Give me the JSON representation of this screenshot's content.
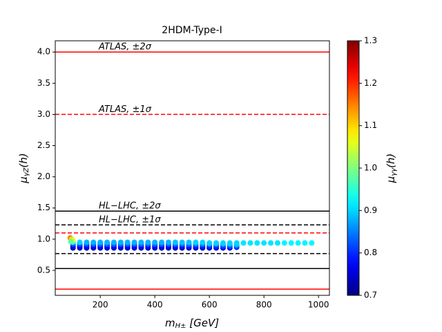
{
  "chart_data": {
    "type": "scatter",
    "title": "2HDM-Type-I",
    "x_label": {
      "main": "m",
      "sub": "H±",
      "unit": " [GeV]"
    },
    "y_label": {
      "main": "μ",
      "sub": "γZ",
      "unit": "(h)"
    },
    "xlim": [
      35,
      1040
    ],
    "ylim": [
      0.1,
      4.18
    ],
    "xticks": [
      200,
      400,
      600,
      800,
      1000
    ],
    "yticks": [
      0.5,
      {
        "value": 1,
        "label": "1.0"
      },
      1.5,
      {
        "value": 2,
        "label": "2.0"
      },
      2.5,
      {
        "value": 3,
        "label": "3.0"
      },
      3.5,
      {
        "value": 4,
        "label": "4.0"
      }
    ],
    "lines": [
      {
        "y": 4.0,
        "color": "#ff0000",
        "style": "solid",
        "label": "ATLAS, ±2σ"
      },
      {
        "y": 3.0,
        "color": "#ff0000",
        "style": "dashed",
        "label": "ATLAS, ±1σ"
      },
      {
        "y": 1.45,
        "color": "#000000",
        "style": "solid",
        "label": "HL−LHC, ±2σ"
      },
      {
        "y": 1.23,
        "color": "#000000",
        "style": "dashed",
        "label": "HL−LHC, ±1σ"
      },
      {
        "y": 1.1,
        "color": "#ff0000",
        "style": "dashed"
      },
      {
        "y": 0.77,
        "color": "#000000",
        "style": "dashed"
      },
      {
        "y": 0.53,
        "color": "#000000",
        "style": "solid"
      },
      {
        "y": 0.2,
        "color": "#ff0000",
        "style": "solid"
      }
    ],
    "x": [
      100,
      125,
      150,
      175,
      200,
      225,
      250,
      275,
      300,
      325,
      350,
      375,
      400,
      425,
      450,
      475,
      500,
      525,
      550,
      575,
      600,
      625,
      650,
      675,
      700,
      100,
      125,
      150,
      175,
      200,
      225,
      250,
      275,
      300,
      325,
      350,
      375,
      400,
      425,
      450,
      475,
      500,
      525,
      550,
      575,
      600,
      625,
      650,
      675,
      700,
      100,
      125,
      150,
      175,
      200,
      225,
      250,
      275,
      300,
      325,
      350,
      375,
      400,
      425,
      450,
      475,
      500,
      525,
      550,
      575,
      600,
      625,
      650,
      675,
      700,
      100,
      125,
      150,
      175,
      200,
      225,
      250,
      275,
      300,
      325,
      350,
      375,
      400,
      425,
      450,
      475,
      500,
      525,
      550,
      575,
      600,
      625,
      650,
      675,
      700,
      725,
      750,
      775,
      800,
      825,
      850,
      875,
      900,
      925,
      950,
      975,
      90,
      95,
      100,
      92
    ],
    "y": [
      0.86,
      0.86,
      0.86,
      0.86,
      0.86,
      0.86,
      0.86,
      0.86,
      0.86,
      0.86,
      0.86,
      0.86,
      0.86,
      0.86,
      0.86,
      0.86,
      0.86,
      0.86,
      0.86,
      0.86,
      0.86,
      0.86,
      0.86,
      0.86,
      0.87,
      0.89,
      0.89,
      0.89,
      0.89,
      0.89,
      0.89,
      0.89,
      0.89,
      0.89,
      0.89,
      0.89,
      0.89,
      0.89,
      0.89,
      0.89,
      0.89,
      0.89,
      0.89,
      0.89,
      0.89,
      0.89,
      0.89,
      0.89,
      0.89,
      0.9,
      0.92,
      0.92,
      0.92,
      0.92,
      0.92,
      0.92,
      0.92,
      0.92,
      0.92,
      0.92,
      0.92,
      0.92,
      0.92,
      0.92,
      0.92,
      0.92,
      0.92,
      0.92,
      0.92,
      0.92,
      0.92,
      0.92,
      0.92,
      0.92,
      0.92,
      0.95,
      0.95,
      0.95,
      0.95,
      0.95,
      0.95,
      0.95,
      0.95,
      0.95,
      0.95,
      0.95,
      0.95,
      0.95,
      0.95,
      0.95,
      0.95,
      0.95,
      0.95,
      0.95,
      0.95,
      0.94,
      0.94,
      0.94,
      0.94,
      0.94,
      0.94,
      0.94,
      0.94,
      0.94,
      0.94,
      0.94,
      0.94,
      0.94,
      0.94,
      0.94,
      0.94,
      1.02,
      1.0,
      0.98,
      0.96
    ],
    "mu": [
      0.73,
      0.73,
      0.74,
      0.74,
      0.74,
      0.74,
      0.74,
      0.74,
      0.74,
      0.74,
      0.74,
      0.74,
      0.74,
      0.74,
      0.74,
      0.74,
      0.74,
      0.74,
      0.74,
      0.75,
      0.75,
      0.75,
      0.76,
      0.77,
      0.8,
      0.77,
      0.77,
      0.78,
      0.78,
      0.78,
      0.78,
      0.78,
      0.78,
      0.78,
      0.78,
      0.78,
      0.78,
      0.78,
      0.78,
      0.78,
      0.78,
      0.78,
      0.79,
      0.79,
      0.79,
      0.8,
      0.8,
      0.81,
      0.82,
      0.85,
      0.82,
      0.82,
      0.82,
      0.83,
      0.83,
      0.83,
      0.83,
      0.83,
      0.83,
      0.83,
      0.83,
      0.83,
      0.83,
      0.83,
      0.83,
      0.84,
      0.84,
      0.84,
      0.85,
      0.85,
      0.86,
      0.86,
      0.87,
      0.88,
      0.89,
      0.92,
      0.9,
      0.88,
      0.88,
      0.88,
      0.88,
      0.88,
      0.88,
      0.88,
      0.88,
      0.88,
      0.88,
      0.88,
      0.88,
      0.88,
      0.89,
      0.89,
      0.89,
      0.9,
      0.9,
      0.9,
      0.9,
      0.9,
      0.9,
      0.9,
      0.91,
      0.91,
      0.91,
      0.91,
      0.91,
      0.91,
      0.92,
      0.92,
      0.92,
      0.92,
      0.92,
      1.15,
      1.1,
      1.05,
      0.98
    ],
    "colorbar": {
      "label": {
        "main": "μ",
        "sub": "γγ",
        "unit": "(h)"
      },
      "colormap": "jet",
      "lim": [
        0.7,
        1.3
      ],
      "ticks": [
        0.7,
        0.8,
        0.9,
        {
          "value": 1,
          "label": "1.0"
        },
        1.1,
        1.2,
        1.3
      ]
    }
  }
}
